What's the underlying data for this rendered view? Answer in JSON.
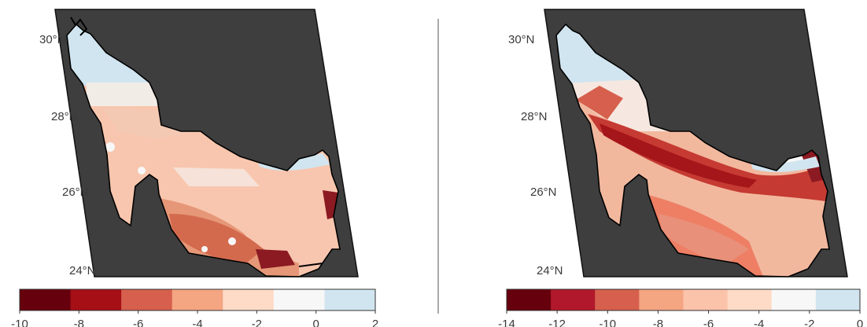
{
  "panels": [
    {
      "name": "left-map",
      "lat_labels": [
        "30°N",
        "28°N",
        "26°N",
        "24°N"
      ],
      "colorbar": {
        "ticks": [
          "-10",
          "-8",
          "-6",
          "-4",
          "-2",
          "0",
          "2"
        ],
        "colors": [
          "#67000d",
          "#a50f15",
          "#d6604d",
          "#f4a582",
          "#fddbc7",
          "#f7f7f7",
          "#d1e5f0"
        ]
      }
    },
    {
      "name": "right-map",
      "lat_labels": [
        "30°N",
        "28°N",
        "26°N",
        "24°N"
      ],
      "colorbar": {
        "ticks": [
          "-14",
          "-12",
          "-10",
          "-8",
          "-6",
          "-4",
          "-2",
          "0"
        ],
        "colors": [
          "#67000d",
          "#b2182b",
          "#d6604d",
          "#f4a582",
          "#fbc3aa",
          "#fddbc7",
          "#f7f7f7",
          "#d1e5f0"
        ]
      }
    }
  ],
  "colors": {
    "land": "#3e3e3e",
    "coast": "#000000",
    "divider": "#555555"
  }
}
